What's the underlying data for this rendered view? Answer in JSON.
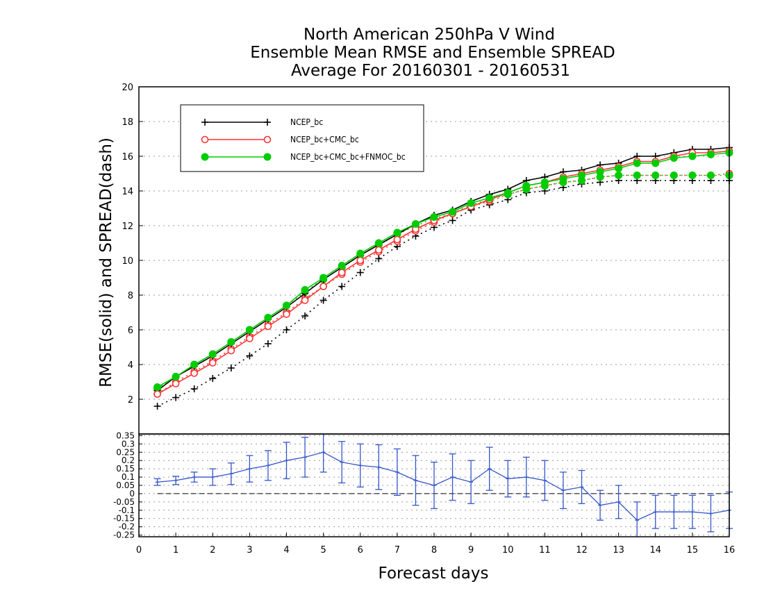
{
  "chart_data": {
    "type": "line",
    "title": [
      "North American 250hPa V Wind",
      "Ensemble Mean RMSE and Ensemble SPREAD",
      "Average For 20160301 - 20160531"
    ],
    "ylabel": "RMSE(solid) and SPREAD(dash)",
    "xlabel": "Forecast days",
    "xlim": [
      0,
      16
    ],
    "ylim": [
      0,
      20
    ],
    "x_ticks": [
      "0",
      "1",
      "2",
      "3",
      "4",
      "5",
      "6",
      "7",
      "8",
      "9",
      "10",
      "11",
      "12",
      "13",
      "14",
      "15",
      "16"
    ],
    "y_ticks": [
      "2",
      "4",
      "6",
      "8",
      "10",
      "12",
      "14",
      "16",
      "18",
      "20"
    ],
    "legend": {
      "placement": "top-left",
      "entries": [
        "NCEP_bc",
        "NCEP_bc+CMC_bc",
        "NCEP_bc+CMC_bc+FNMOC_bc"
      ]
    },
    "grid": true,
    "x": [
      0.5,
      1,
      1.5,
      2,
      2.5,
      3,
      3.5,
      4,
      4.5,
      5,
      5.5,
      6,
      6.5,
      7,
      7.5,
      8,
      8.5,
      9,
      9.5,
      10,
      10.5,
      11,
      11.5,
      12,
      12.5,
      13,
      13.5,
      14,
      14.5,
      15,
      15.5,
      16
    ],
    "series": [
      {
        "name": "NCEP_bc",
        "kind": "rmse",
        "color": "#000000",
        "marker": "plus",
        "values": [
          2.5,
          3.3,
          3.9,
          4.5,
          5.2,
          5.9,
          6.6,
          7.3,
          8.1,
          8.9,
          9.6,
          10.3,
          10.9,
          11.5,
          12.1,
          12.6,
          12.9,
          13.4,
          13.8,
          14.1,
          14.6,
          14.8,
          15.1,
          15.2,
          15.5,
          15.6,
          16.0,
          16.0,
          16.2,
          16.4,
          16.4,
          16.5
        ]
      },
      {
        "name": "NCEP_bc+CMC_bc",
        "kind": "rmse",
        "color": "#ff3333",
        "marker": "circle-open",
        "values": [
          2.3,
          2.9,
          3.5,
          4.1,
          4.8,
          5.5,
          6.2,
          6.9,
          7.7,
          8.5,
          9.3,
          10.0,
          10.6,
          11.2,
          11.8,
          12.3,
          12.7,
          13.1,
          13.5,
          13.9,
          14.3,
          14.5,
          14.8,
          15.0,
          15.2,
          15.4,
          15.7,
          15.7,
          16.0,
          16.2,
          16.2,
          16.3
        ]
      },
      {
        "name": "NCEP_bc+CMC_bc+FNMOC_bc",
        "kind": "rmse",
        "color": "#00cc00",
        "marker": "circle-filled",
        "values": [
          2.7,
          3.3,
          4.0,
          4.6,
          5.3,
          6.0,
          6.7,
          7.4,
          8.3,
          9.0,
          9.7,
          10.4,
          11.0,
          11.6,
          12.1,
          12.5,
          12.8,
          13.3,
          13.6,
          13.9,
          14.3,
          14.5,
          14.7,
          14.9,
          15.1,
          15.3,
          15.6,
          15.6,
          15.9,
          16.0,
          16.1,
          16.2
        ]
      },
      {
        "name": "NCEP_bc",
        "kind": "spread",
        "color": "#000000",
        "marker": "plus",
        "values": [
          1.6,
          2.1,
          2.6,
          3.2,
          3.8,
          4.5,
          5.2,
          6.0,
          6.8,
          7.7,
          8.5,
          9.3,
          10.1,
          10.8,
          11.4,
          11.9,
          12.3,
          12.9,
          13.2,
          13.5,
          13.9,
          14.0,
          14.2,
          14.4,
          14.5,
          14.6,
          14.6,
          14.6,
          14.6,
          14.6,
          14.6,
          14.6
        ]
      },
      {
        "name": "NCEP_bc+CMC_bc",
        "kind": "spread",
        "color": "#ff3333",
        "marker": "circle-open",
        "values": [
          2.3,
          3.0,
          3.6,
          4.2,
          4.9,
          5.6,
          6.3,
          7.0,
          7.8,
          8.5,
          9.2,
          9.9,
          10.5,
          11.1,
          11.7,
          12.2,
          12.7,
          13.1,
          13.4,
          13.8,
          14.1,
          14.3,
          14.5,
          14.6,
          14.8,
          14.9,
          14.9,
          14.9,
          14.9,
          14.9,
          14.9,
          15.0
        ]
      },
      {
        "name": "NCEP_bc+CMC_bc+FNMOC_bc",
        "kind": "spread",
        "color": "#00cc00",
        "marker": "circle-filled",
        "values": [
          2.6,
          3.3,
          4.0,
          4.6,
          5.3,
          6.0,
          6.7,
          7.4,
          8.2,
          8.9,
          9.6,
          10.3,
          10.9,
          11.5,
          12.0,
          12.4,
          12.7,
          13.2,
          13.5,
          13.8,
          14.1,
          14.3,
          14.5,
          14.6,
          14.8,
          14.9,
          14.9,
          14.9,
          14.9,
          14.9,
          14.9,
          14.9
        ]
      }
    ],
    "difference_panel": {
      "ylim": [
        -0.26,
        0.36
      ],
      "y_ticks": [
        "-0.25",
        "-0.2",
        "-0.15",
        "-0.1",
        "-0.05",
        "0",
        "0.05",
        "0.1",
        "0.15",
        "0.2",
        "0.25",
        "0.3",
        "0.35"
      ],
      "color": "#3355cc",
      "values": [
        0.07,
        0.08,
        0.1,
        0.1,
        0.12,
        0.15,
        0.17,
        0.2,
        0.22,
        0.25,
        0.19,
        0.17,
        0.16,
        0.13,
        0.08,
        0.05,
        0.1,
        0.07,
        0.15,
        0.09,
        0.1,
        0.08,
        0.02,
        0.04,
        -0.07,
        -0.05,
        -0.16,
        -0.11,
        -0.11,
        -0.11,
        -0.12,
        -0.1
      ],
      "error": [
        0.02,
        0.025,
        0.03,
        0.05,
        0.065,
        0.08,
        0.09,
        0.11,
        0.12,
        0.12,
        0.125,
        0.13,
        0.135,
        0.14,
        0.15,
        0.14,
        0.14,
        0.13,
        0.13,
        0.11,
        0.12,
        0.12,
        0.11,
        0.1,
        0.09,
        0.1,
        0.11,
        0.1,
        0.1,
        0.1,
        0.11,
        0.11
      ]
    }
  }
}
